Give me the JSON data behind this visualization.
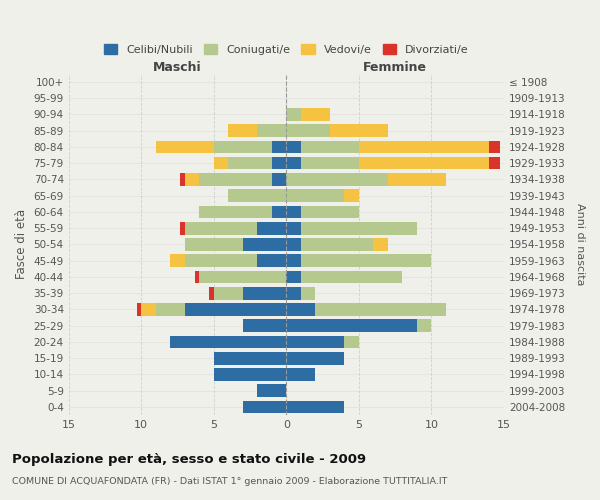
{
  "age_groups": [
    "0-4",
    "5-9",
    "10-14",
    "15-19",
    "20-24",
    "25-29",
    "30-34",
    "35-39",
    "40-44",
    "45-49",
    "50-54",
    "55-59",
    "60-64",
    "65-69",
    "70-74",
    "75-79",
    "80-84",
    "85-89",
    "90-94",
    "95-99",
    "100+"
  ],
  "birth_years": [
    "2004-2008",
    "1999-2003",
    "1994-1998",
    "1989-1993",
    "1984-1988",
    "1979-1983",
    "1974-1978",
    "1969-1973",
    "1964-1968",
    "1959-1963",
    "1954-1958",
    "1949-1953",
    "1944-1948",
    "1939-1943",
    "1934-1938",
    "1929-1933",
    "1924-1928",
    "1919-1923",
    "1914-1918",
    "1909-1913",
    "≤ 1908"
  ],
  "male": {
    "celibi": [
      3,
      2,
      5,
      5,
      8,
      3,
      7,
      3,
      0,
      2,
      3,
      2,
      1,
      0,
      1,
      1,
      1,
      0,
      0,
      0,
      0
    ],
    "coniugati": [
      0,
      0,
      0,
      0,
      0,
      0,
      2,
      2,
      6,
      5,
      4,
      5,
      5,
      4,
      5,
      3,
      4,
      2,
      0,
      0,
      0
    ],
    "vedovi": [
      0,
      0,
      0,
      0,
      0,
      0,
      1,
      0,
      0,
      1,
      0,
      0,
      0,
      0,
      1,
      1,
      4,
      2,
      0,
      0,
      0
    ],
    "divorziati": [
      0,
      0,
      0,
      0,
      0,
      0,
      0.3,
      0.3,
      0.3,
      0,
      0,
      0.3,
      0,
      0,
      0.3,
      0,
      0,
      0,
      0,
      0,
      0
    ]
  },
  "female": {
    "nubili": [
      4,
      0,
      2,
      4,
      4,
      9,
      2,
      1,
      1,
      1,
      1,
      1,
      1,
      0,
      0,
      1,
      1,
      0,
      0,
      0,
      0
    ],
    "coniugate": [
      0,
      0,
      0,
      0,
      1,
      1,
      9,
      1,
      7,
      9,
      5,
      8,
      4,
      4,
      7,
      4,
      4,
      3,
      1,
      0,
      0
    ],
    "vedove": [
      0,
      0,
      0,
      0,
      0,
      0,
      0,
      0,
      0,
      0,
      1,
      0,
      0,
      1,
      4,
      9,
      9,
      4,
      2,
      0,
      0
    ],
    "divorziate": [
      0,
      0,
      0,
      0,
      0,
      0,
      0,
      0,
      0,
      0,
      0,
      0,
      0,
      0,
      0,
      0.7,
      0.7,
      0,
      0,
      0,
      0
    ]
  },
  "colors": {
    "celibi_nubili": "#2e6da4",
    "coniugati": "#b5c98e",
    "vedovi": "#f5c242",
    "divorziati": "#d9332a"
  },
  "xlim": 15,
  "title": "Popolazione per età, sesso e stato civile - 2009",
  "subtitle": "COMUNE DI ACQUAFONDATA (FR) - Dati ISTAT 1° gennaio 2009 - Elaborazione TUTTITALIA.IT",
  "ylabel_left": "Fasce di età",
  "ylabel_right": "Anni di nascita",
  "xlabel_maschi": "Maschi",
  "xlabel_femmine": "Femmine",
  "legend_labels": [
    "Celibi/Nubili",
    "Coniugati/e",
    "Vedovi/e",
    "Divorziati/e"
  ],
  "bg_color": "#f0f0eb"
}
